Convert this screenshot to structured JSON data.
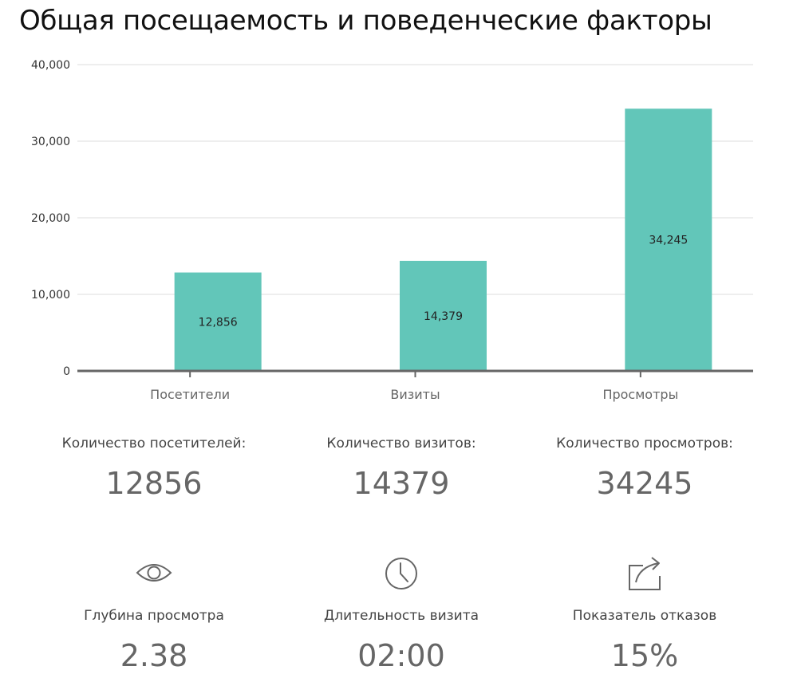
{
  "title": "Общая посещаемость и поведенческие факторы",
  "chart_data": {
    "type": "bar",
    "categories": [
      "Посетители",
      "Визиты",
      "Просмотры"
    ],
    "values": [
      12856,
      14379,
      34245
    ],
    "value_labels": [
      "12,856",
      "14,379",
      "34,245"
    ],
    "y_ticks": [
      "0",
      "10,000",
      "20,000",
      "30,000",
      "40,000"
    ],
    "ylim": [
      0,
      40000
    ],
    "grid": true,
    "bar_color": "#62c6b9"
  },
  "stats": [
    {
      "label": "Количество посетителей:",
      "value": "12856"
    },
    {
      "label": "Количество визитов:",
      "value": "14379"
    },
    {
      "label": "Количество просмотров:",
      "value": "34245"
    }
  ],
  "metrics": [
    {
      "icon": "eye-icon",
      "label": "Глубина просмотра",
      "value": "2.38"
    },
    {
      "icon": "clock-icon",
      "label": "Длительность визита",
      "value": "02:00"
    },
    {
      "icon": "share-icon",
      "label": "Показатель отказов",
      "value": "15%"
    }
  ]
}
